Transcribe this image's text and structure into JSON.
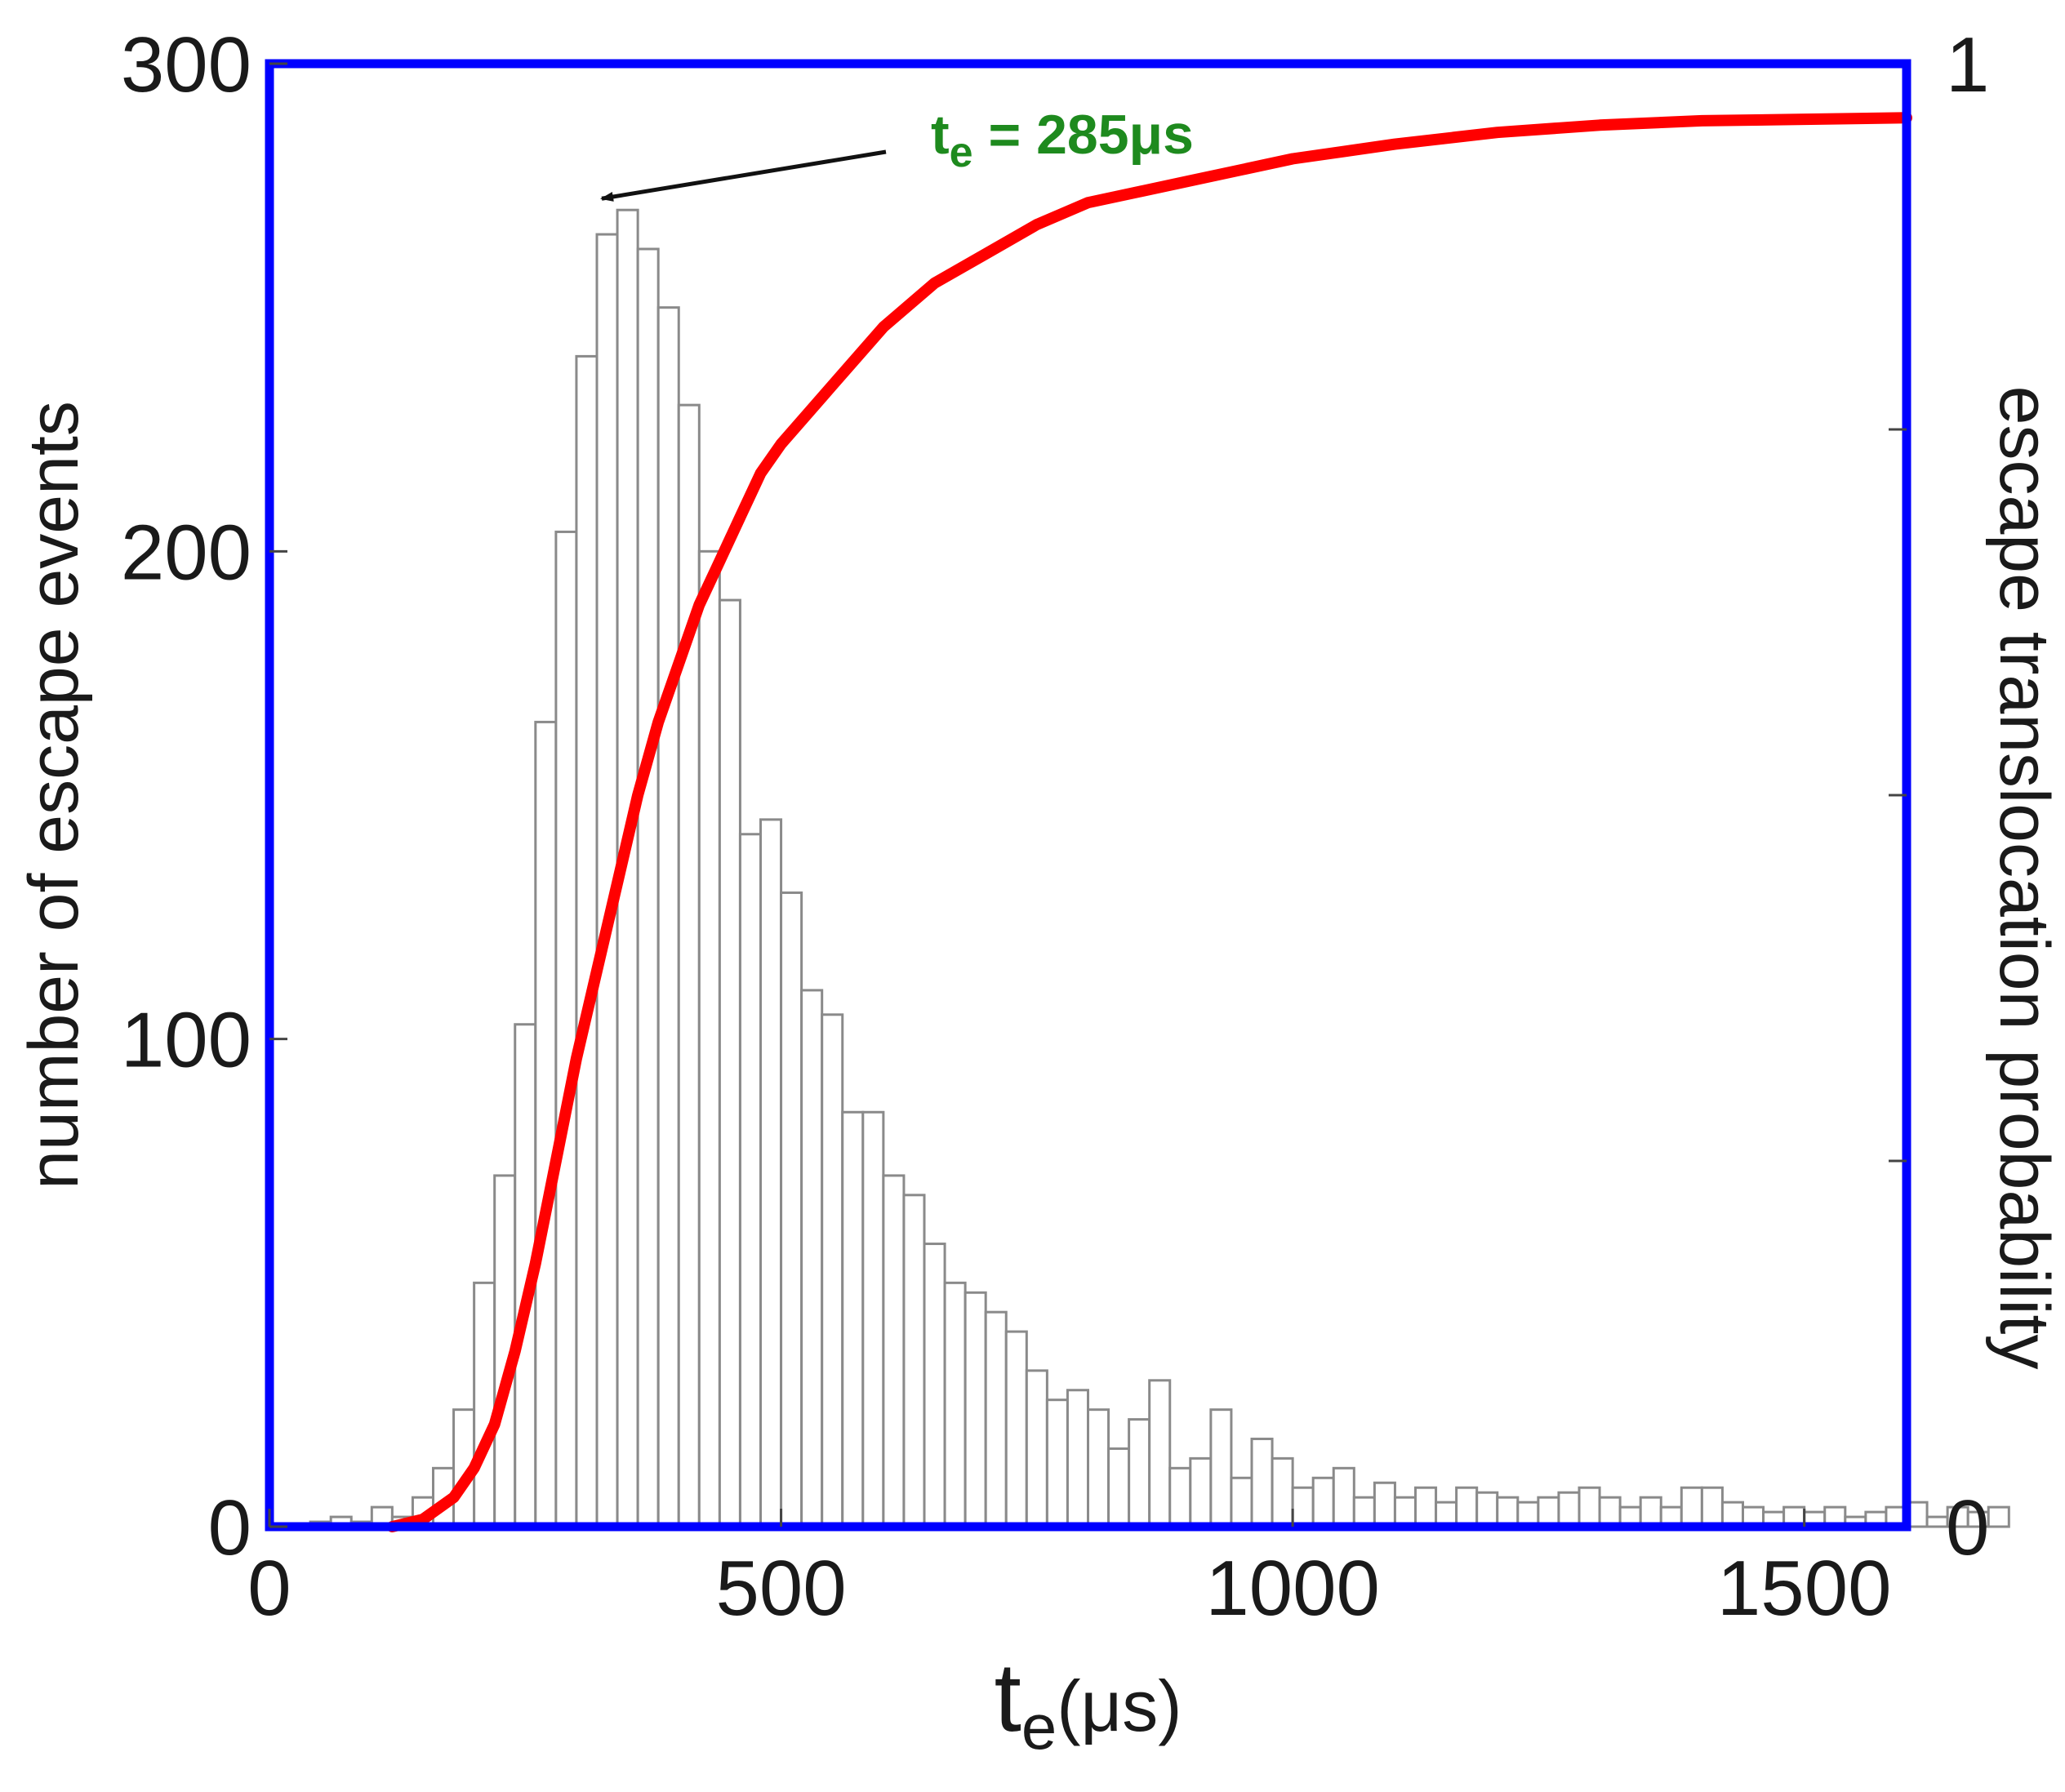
{
  "chart_data": {
    "type": "bar",
    "title": "",
    "xlabel_main": "t",
    "xlabel_sub": "e",
    "xlabel_unit": "(μs)",
    "ylabel": "number of escape events",
    "y2label": "escape translocation probability",
    "xlim": [
      0,
      1600
    ],
    "ylim": [
      0,
      300
    ],
    "y2lim": [
      0,
      1
    ],
    "xticks": [
      "0",
      "500",
      "1000",
      "1500"
    ],
    "xtick_values": [
      0,
      500,
      1000,
      1500
    ],
    "yticks": [
      "0",
      "100",
      "200",
      "300"
    ],
    "ytick_values": [
      0,
      100,
      200,
      300
    ],
    "y2ticks": [
      "0",
      "1"
    ],
    "y2tick_values": [
      0,
      1
    ],
    "bin_width": 20,
    "bin_start": 40,
    "histogram_counts": [
      1,
      2,
      1,
      4,
      2,
      6,
      12,
      24,
      50,
      72,
      103,
      165,
      204,
      240,
      265,
      270,
      262,
      250,
      230,
      200,
      190,
      142,
      145,
      130,
      110,
      105,
      85,
      85,
      72,
      68,
      58,
      50,
      48,
      44,
      40,
      32,
      26,
      28,
      24,
      16,
      22,
      30,
      12,
      14,
      24,
      10,
      18,
      14,
      8,
      10,
      12,
      6,
      9,
      6,
      8,
      5,
      8,
      7,
      6,
      5,
      6,
      7,
      8,
      6,
      4,
      6,
      4,
      8,
      8,
      5,
      4,
      3,
      4,
      3,
      4,
      2,
      3,
      4,
      5,
      2,
      4,
      3,
      4
    ],
    "cdf_series": {
      "name": "escape translocation probability",
      "color": "#ff0000",
      "x": [
        120,
        150,
        180,
        200,
        220,
        240,
        260,
        280,
        300,
        320,
        340,
        360,
        380,
        400,
        420,
        440,
        460,
        480,
        500,
        550,
        600,
        650,
        700,
        750,
        800,
        900,
        1000,
        1100,
        1200,
        1300,
        1400,
        1500,
        1600
      ],
      "y": [
        0,
        0.005,
        0.02,
        0.04,
        0.07,
        0.12,
        0.18,
        0.25,
        0.32,
        0.38,
        0.44,
        0.5,
        0.55,
        0.59,
        0.63,
        0.66,
        0.69,
        0.72,
        0.74,
        0.78,
        0.82,
        0.85,
        0.87,
        0.89,
        0.905,
        0.92,
        0.935,
        0.945,
        0.953,
        0.958,
        0.961,
        0.962,
        0.963
      ]
    },
    "annotation": {
      "text_main": "t",
      "text_sub": "e",
      "text_rest": " = 285μs",
      "arrow_target_x": 320,
      "arrow_target_y": 272,
      "color": "#1e8a1e"
    },
    "frame_color": "#0000ff"
  }
}
